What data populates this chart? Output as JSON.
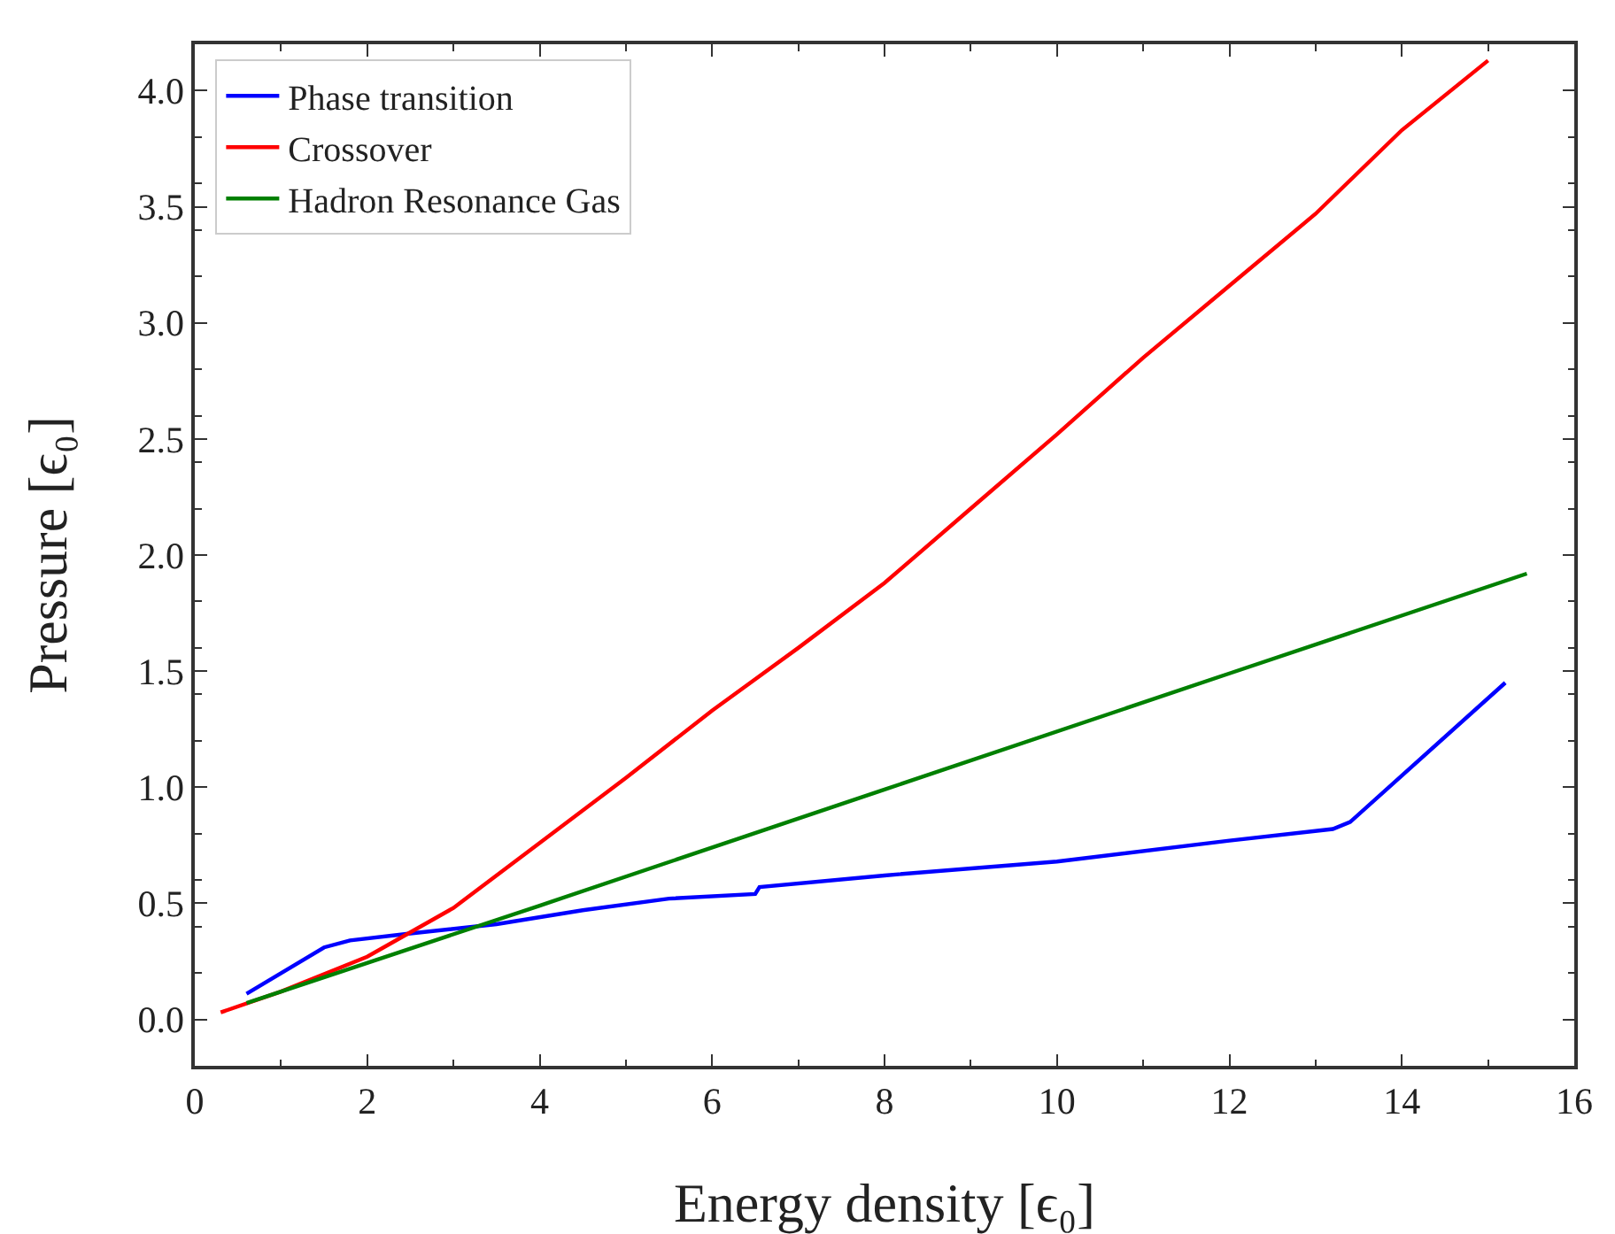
{
  "chart_data": {
    "type": "line",
    "xlabel": "Energy density [ϵ₀]",
    "ylabel": "Pressure [ϵ₀]",
    "xlim": [
      0,
      16
    ],
    "xticks": [
      0,
      2,
      4,
      6,
      8,
      10,
      12,
      14,
      16
    ],
    "ylim": [
      -0.2,
      4.2
    ],
    "yticks": [
      {
        "value": 0,
        "label": "0.0"
      },
      0.5,
      {
        "value": 1,
        "label": "1.0"
      },
      1.5,
      {
        "value": 2,
        "label": "2.0"
      },
      2.5,
      {
        "value": 3,
        "label": "3.0"
      },
      3.5,
      {
        "value": 4,
        "label": "4.0"
      }
    ],
    "grid": false,
    "legend": "top left",
    "marker": "none",
    "line_style": "solid",
    "series": [
      {
        "name": "Phase transition",
        "color": "#0000ff",
        "x": [
          0.6,
          1.5,
          1.8,
          2.5,
          3.5,
          4.5,
          5.5,
          6.5,
          6.55,
          8,
          10,
          12,
          13.2,
          13.4,
          15.2
        ],
        "values": [
          0.11,
          0.31,
          0.34,
          0.37,
          0.41,
          0.47,
          0.52,
          0.54,
          0.57,
          0.62,
          0.68,
          0.77,
          0.82,
          0.85,
          1.45
        ]
      },
      {
        "name": "Crossover",
        "color": "#ff0000",
        "x": [
          0.3,
          1,
          2,
          3,
          4,
          5,
          6,
          7,
          8,
          9,
          10,
          11,
          12,
          13,
          14,
          15
        ],
        "values": [
          0.03,
          0.12,
          0.27,
          0.48,
          0.76,
          1.04,
          1.33,
          1.6,
          1.88,
          2.2,
          2.52,
          2.85,
          3.16,
          3.47,
          3.83,
          4.13
        ]
      },
      {
        "name": "Hadron Resonance Gas",
        "color": "#008000",
        "x": [
          0.6,
          4,
          8,
          12,
          15.45
        ],
        "values": [
          0.07,
          0.49,
          0.99,
          1.49,
          1.92
        ]
      }
    ]
  }
}
